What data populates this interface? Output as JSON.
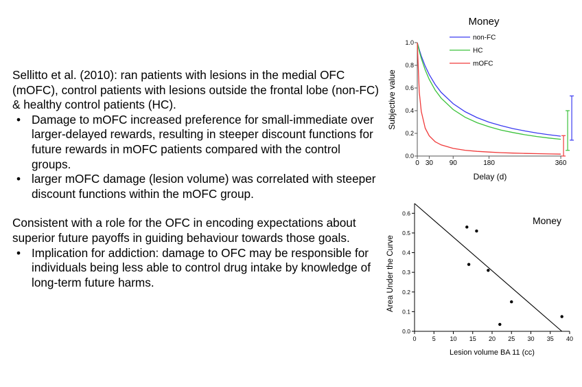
{
  "text": {
    "intro": "Sellitto et al. (2010): ran patients with lesions in the medial OFC (mOFC), control patients with lesions outside the frontal lobe (non-FC) & healthy control patients (HC).",
    "bullets1": [
      "Damage to mOFC increased preference for small-immediate over larger-delayed rewards, resulting in steeper discount functions for future rewards in mOFC patients compared with the control groups.",
      "larger mOFC damage (lesion volume) was correlated with steeper discount functions within the mOFC group."
    ],
    "conclusion": "Consistent with a role for the OFC in encoding expectations about superior future payoffs in guiding behaviour towards those goals.",
    "bullets2": [
      "Implication for addiction: damage to OFC may be responsible for individuals being less able to control drug intake by knowledge of long-term future harms."
    ]
  },
  "chart_data": [
    {
      "type": "line",
      "title": "Money",
      "xlabel": "Delay (d)",
      "ylabel": "Subjective value",
      "xlim": [
        0,
        365
      ],
      "ylim": [
        0,
        1.0
      ],
      "x_ticks": [
        0,
        30,
        90,
        180,
        360
      ],
      "y_ticks": [
        0.0,
        0.2,
        0.4,
        0.6,
        0.8,
        1.0
      ],
      "y_tick_labels": [
        "0.0",
        "0.2",
        "0.4",
        "0.6",
        "0.8",
        "1.0"
      ],
      "legend_position": "top-right",
      "x": [
        0,
        5,
        10,
        20,
        30,
        45,
        60,
        90,
        120,
        150,
        180,
        210,
        240,
        270,
        300,
        330,
        360
      ],
      "series": [
        {
          "name": "non-FC",
          "color": "#3a3af0",
          "values": [
            1.0,
            0.938,
            0.883,
            0.792,
            0.719,
            0.63,
            0.561,
            0.461,
            0.391,
            0.339,
            0.299,
            0.268,
            0.242,
            0.221,
            0.203,
            0.188,
            0.175
          ]
        },
        {
          "name": "HC",
          "color": "#3ac23a",
          "values": [
            1.0,
            0.926,
            0.862,
            0.758,
            0.676,
            0.581,
            0.51,
            0.41,
            0.342,
            0.294,
            0.258,
            0.229,
            0.207,
            0.188,
            0.172,
            0.159,
            0.148
          ]
        },
        {
          "name": "mOFC",
          "color": "#f03a3a",
          "values": [
            1.0,
            0.565,
            0.394,
            0.245,
            0.178,
            0.126,
            0.098,
            0.067,
            0.051,
            0.041,
            0.035,
            0.03,
            0.026,
            0.023,
            0.021,
            0.019,
            0.017
          ]
        }
      ],
      "error_bars": [
        {
          "series": "mOFC",
          "x": 360,
          "low": 0.0,
          "high": 0.18,
          "color": "#f03a3a"
        },
        {
          "series": "HC",
          "x": 360,
          "low": 0.05,
          "high": 0.4,
          "color": "#3ac23a"
        },
        {
          "series": "non-FC",
          "x": 360,
          "low": 0.14,
          "high": 0.53,
          "color": "#3a3af0"
        }
      ]
    },
    {
      "type": "scatter",
      "title": "Money",
      "xlabel": "Lesion volume BA 11 (cc)",
      "ylabel": "Area Under the Curve",
      "xlim": [
        0,
        40
      ],
      "ylim": [
        0,
        0.65
      ],
      "x_ticks": [
        0,
        5,
        10,
        15,
        20,
        25,
        30,
        35,
        40
      ],
      "y_ticks": [
        0.0,
        0.1,
        0.2,
        0.3,
        0.4,
        0.5,
        0.6
      ],
      "y_tick_labels": [
        "0.0",
        "0.1",
        "0.2",
        "0.3",
        "0.4",
        "0.5",
        "0.6"
      ],
      "points": [
        {
          "x": 13.5,
          "y": 0.53
        },
        {
          "x": 16.0,
          "y": 0.51
        },
        {
          "x": 14.0,
          "y": 0.34
        },
        {
          "x": 19.0,
          "y": 0.31
        },
        {
          "x": 25.0,
          "y": 0.15
        },
        {
          "x": 22.0,
          "y": 0.035
        },
        {
          "x": 38.0,
          "y": 0.075
        }
      ],
      "fit_line": {
        "x": [
          0,
          38
        ],
        "y": [
          0.65,
          0.0
        ]
      }
    }
  ]
}
